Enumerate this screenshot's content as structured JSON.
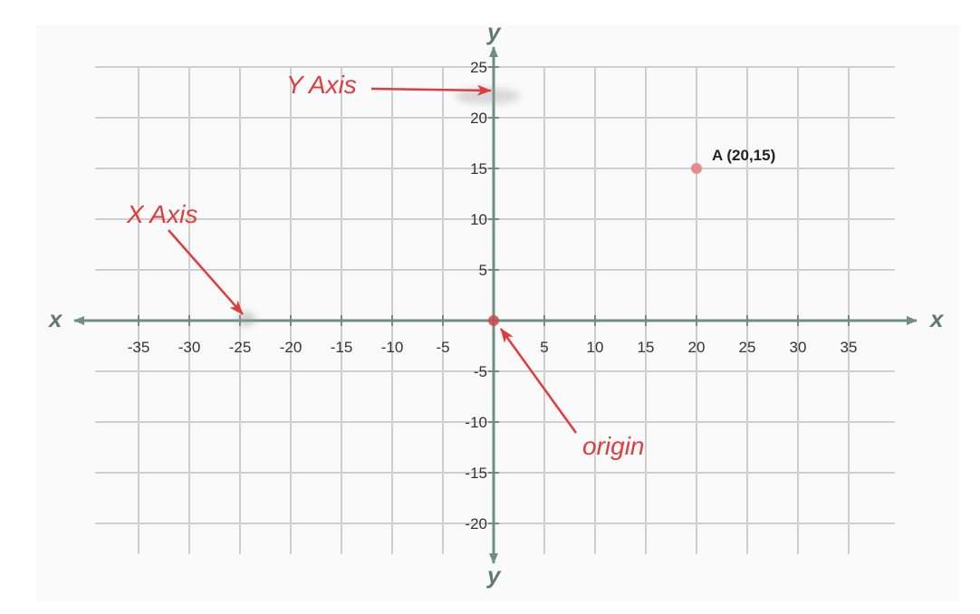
{
  "colors": {
    "background": "#fafafa",
    "grid": "#cfcfcf",
    "axis": "#6e8f84",
    "callout": "#e23b3b",
    "point": "#e88a8a",
    "origin": "#c94a4a"
  },
  "axes": {
    "x_letter": "x",
    "y_letter": "y"
  },
  "chart_data": {
    "type": "scatter",
    "xlim": [
      -40,
      40
    ],
    "ylim": [
      -23,
      28
    ],
    "x_ticks": [
      -35,
      -30,
      -25,
      -20,
      -15,
      -10,
      -5,
      5,
      10,
      15,
      20,
      25,
      30,
      35
    ],
    "y_ticks": [
      25,
      20,
      15,
      10,
      5,
      -5,
      -10,
      -15,
      -20
    ],
    "grid": true,
    "points": [
      {
        "label": "A (20,15)",
        "x": 20,
        "y": 15
      }
    ],
    "origin": {
      "x": 0,
      "y": 0
    }
  },
  "annotations": [
    {
      "id": "y-axis",
      "text": "Y Axis"
    },
    {
      "id": "x-axis",
      "text": "X Axis"
    },
    {
      "id": "origin",
      "text": "origin"
    }
  ]
}
